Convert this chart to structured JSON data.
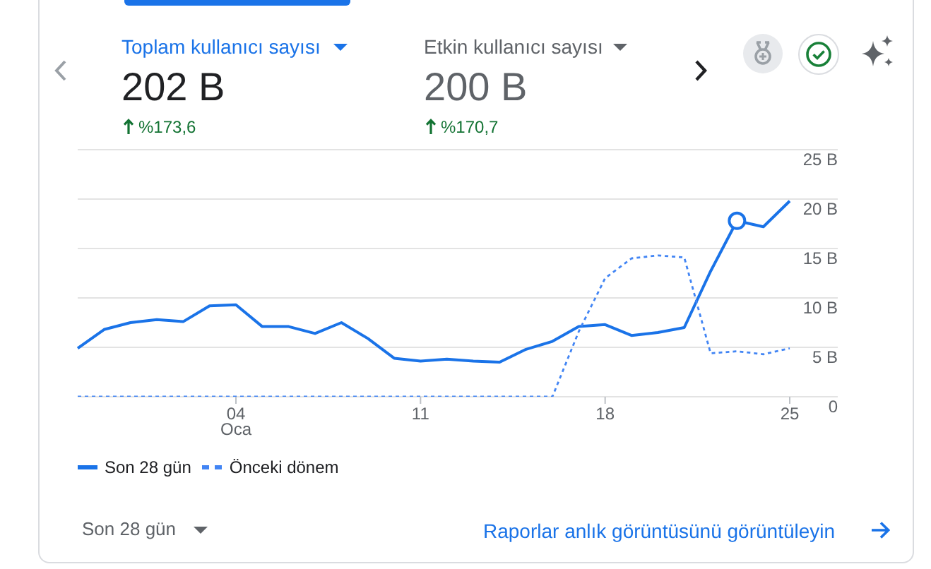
{
  "chart_data": {
    "type": "line",
    "title": "Toplam kullanıcı sayısı",
    "categories": [
      null,
      null,
      null,
      null,
      null,
      null,
      "04 Oca",
      null,
      null,
      null,
      null,
      null,
      null,
      "11",
      null,
      null,
      null,
      null,
      null,
      null,
      "18",
      null,
      null,
      null,
      null,
      null,
      null,
      "25"
    ],
    "series": [
      {
        "name": "Son 28 gün",
        "color": "#1a73e8",
        "line_style": "solid",
        "values": [
          4.9,
          6.8,
          7.5,
          7.8,
          7.6,
          9.2,
          9.3,
          7.1,
          7.1,
          6.4,
          7.5,
          5.9,
          3.9,
          3.6,
          3.8,
          3.6,
          3.5,
          4.8,
          5.6,
          7.1,
          7.3,
          6.2,
          6.5,
          7.0,
          12.7,
          17.8,
          17.2,
          19.8
        ]
      },
      {
        "name": "Önceki dönem",
        "color": "#4285f4",
        "line_style": "dashed",
        "values": [
          0,
          0,
          0,
          0,
          0,
          0,
          0,
          0,
          0,
          0,
          0,
          0,
          0,
          0,
          0,
          0,
          0,
          0,
          0,
          6.6,
          12.0,
          14.0,
          14.3,
          14.1,
          4.4,
          4.6,
          4.3,
          4.9
        ]
      },
      {
        "type": "scatter",
        "color": "#1a73e8",
        "marker": "circle",
        "values": [
          null,
          null,
          null,
          null,
          null,
          null,
          null,
          null,
          null,
          null,
          null,
          null,
          null,
          null,
          null,
          null,
          null,
          null,
          null,
          null,
          null,
          null,
          null,
          null,
          null,
          17.8,
          null,
          null
        ]
      }
    ],
    "ylim": [
      0,
      25
    ],
    "yticks": [
      0,
      {
        "value": 5,
        "label": "5 B"
      },
      {
        "value": 10,
        "label": "10 B"
      },
      {
        "value": 15,
        "label": "15 B"
      },
      {
        "value": 20,
        "label": "20 B"
      },
      {
        "value": 25,
        "label": "25 B"
      }
    ],
    "grid": "y",
    "legend": "bottom left",
    "annotations": [
      "202 B",
      "%173,6",
      "Etkin kullanıcı sayısı",
      "200 B",
      "%170,7",
      "Son 28 gün",
      "Raporlar anlık görüntüsünü görüntüleyin"
    ]
  }
}
